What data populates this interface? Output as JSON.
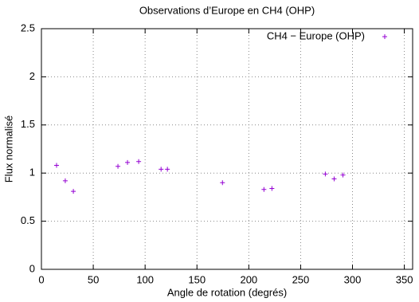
{
  "chart_data": {
    "type": "scatter",
    "title": "Observations d’Europe en CH4 (OHP)",
    "x_label": "Angle de rotation (degrés)",
    "y_label": "Flux normalisé",
    "x": [
      14.6,
      23,
      30.8,
      73.8,
      83,
      93.8,
      115.4,
      121.5,
      174.6,
      214.6,
      222.3,
      273.8,
      282.3,
      290.8
    ],
    "series": [
      {
        "name": "CH4 − Europe (OHP)",
        "color": "#9400d3",
        "values": [
          1.08,
          0.92,
          0.81,
          1.07,
          1.11,
          1.12,
          1.04,
          1.04,
          0.9,
          0.83,
          0.84,
          0.99,
          0.94,
          0.98
        ]
      }
    ],
    "xlim": [
      0,
      358
    ],
    "xticks": [
      0,
      50,
      100,
      150,
      200,
      250,
      300,
      350
    ],
    "ylim": [
      0,
      2.5
    ],
    "yticks": [
      0,
      0.5,
      1,
      1.5,
      2,
      2.5
    ],
    "grid": true,
    "legend": "top-right"
  }
}
